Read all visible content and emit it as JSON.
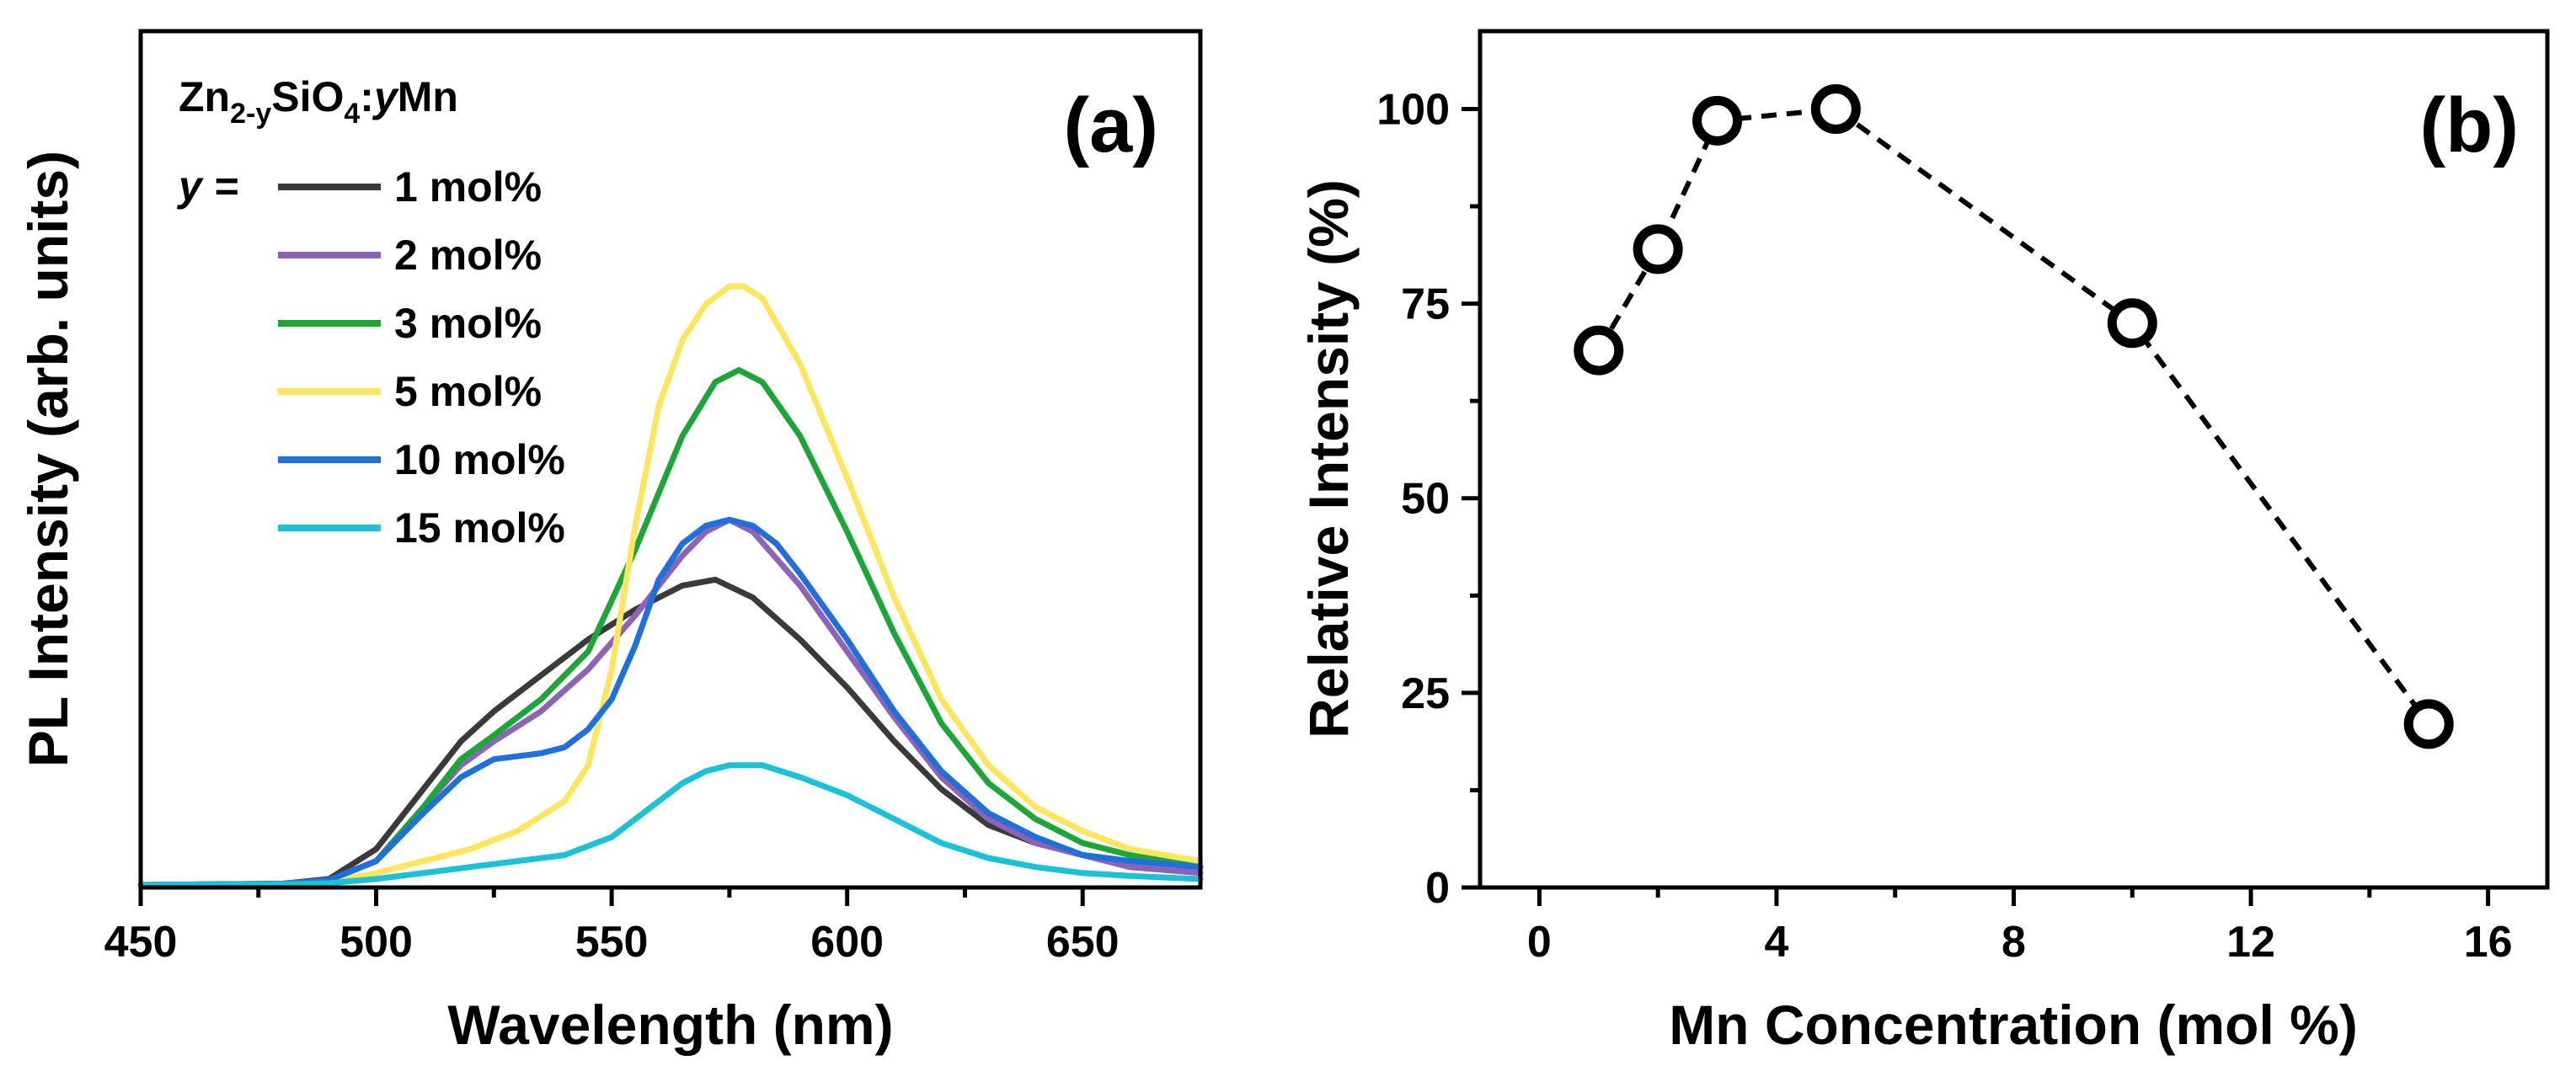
{
  "chart_data": [
    {
      "panel": "(a)",
      "type": "line",
      "title": "",
      "xlabel": "Wavelength (nm)",
      "ylabel": "PL Intensity (arb. units)",
      "xlim": [
        450,
        675
      ],
      "ylim": [
        0,
        100
      ],
      "xticks": [
        450,
        500,
        550,
        600,
        650
      ],
      "xtick_labels": [
        "450",
        "500",
        "550",
        "600",
        "650"
      ],
      "y_tick_labels_shown": false,
      "legend": {
        "placement": "top-left",
        "formula": {
          "base": "Zn",
          "subscript": "2-y",
          "rest": "SiO",
          "subscript2": "4",
          "sep": ":",
          "var": "y",
          "tail": "Mn"
        },
        "prefix": "y =",
        "entries": [
          "1 mol%",
          "2 mol%",
          "3 mol%",
          "5 mol%",
          "10 mol%",
          "15 mol%"
        ]
      },
      "series": [
        {
          "name": "1 mol%",
          "color": "#3a3a3a",
          "x": [
            450,
            480,
            490,
            500,
            510,
            518,
            525,
            535,
            545,
            555,
            565,
            572,
            580,
            590,
            600,
            610,
            620,
            630,
            640,
            650,
            660,
            675
          ],
          "y": [
            0,
            0.2,
            1,
            6,
            16,
            24,
            29,
            35,
            41,
            46,
            50,
            51,
            48,
            41,
            33,
            24,
            16,
            10,
            7,
            5,
            4,
            3
          ]
        },
        {
          "name": "2 mol%",
          "color": "#8e63b5",
          "x": [
            450,
            480,
            490,
            500,
            510,
            518,
            525,
            535,
            545,
            555,
            565,
            570,
            575,
            580,
            590,
            600,
            610,
            620,
            630,
            640,
            650,
            660,
            675
          ],
          "y": [
            0,
            0.2,
            0.8,
            4,
            13,
            20,
            24,
            29,
            36,
            45,
            55,
            59,
            61,
            59,
            50,
            39,
            28,
            18,
            11,
            7,
            5,
            3,
            2
          ]
        },
        {
          "name": "3 mol%",
          "color": "#1ca637",
          "x": [
            450,
            480,
            490,
            500,
            510,
            518,
            525,
            535,
            545,
            555,
            565,
            572,
            577,
            582,
            590,
            600,
            610,
            620,
            630,
            640,
            650,
            660,
            675
          ],
          "y": [
            0,
            0.2,
            0.8,
            4,
            13,
            21,
            25,
            31,
            39,
            56,
            75,
            84,
            86,
            84,
            75,
            59,
            42,
            27,
            17,
            11,
            7,
            5,
            3
          ]
        },
        {
          "name": "5 mol%",
          "color": "#fde65e",
          "x": [
            450,
            480,
            490,
            500,
            510,
            520,
            530,
            540,
            545,
            550,
            555,
            560,
            565,
            570,
            575,
            578,
            582,
            590,
            600,
            610,
            620,
            630,
            640,
            650,
            660,
            675
          ],
          "y": [
            0,
            0.1,
            0.5,
            2,
            4,
            6,
            9,
            14,
            20,
            36,
            60,
            80,
            91,
            97,
            100,
            100,
            98,
            87,
            68,
            48,
            31,
            20,
            13,
            9,
            6,
            4
          ]
        },
        {
          "name": "10 mol%",
          "color": "#1f6fdc",
          "x": [
            450,
            480,
            490,
            500,
            510,
            518,
            525,
            535,
            540,
            545,
            550,
            555,
            560,
            565,
            570,
            575,
            580,
            585,
            590,
            600,
            610,
            620,
            630,
            640,
            650,
            660,
            675
          ],
          "y": [
            0,
            0.2,
            0.8,
            4,
            12,
            18,
            21,
            22,
            23,
            26,
            31,
            40,
            51,
            57,
            60,
            61,
            60,
            57,
            52,
            41,
            29,
            19,
            12,
            8,
            5,
            4,
            3
          ]
        },
        {
          "name": "15 mol%",
          "color": "#1bc2d6",
          "x": [
            450,
            480,
            490,
            500,
            510,
            520,
            530,
            540,
            550,
            555,
            560,
            565,
            570,
            575,
            578,
            582,
            590,
            600,
            610,
            620,
            630,
            640,
            650,
            660,
            675
          ],
          "y": [
            0,
            0.1,
            0.3,
            1,
            2,
            3,
            4,
            5,
            8,
            11,
            14,
            17,
            19,
            20,
            20,
            20,
            18,
            15,
            11,
            7,
            4.5,
            3,
            2,
            1.5,
            1
          ]
        }
      ]
    },
    {
      "panel": "(b)",
      "type": "scatter",
      "title": "",
      "xlabel": "Mn Concentration (mol %)",
      "ylabel": "Relative Intensity (%)",
      "xlim": [
        -1,
        17
      ],
      "ylim": [
        0,
        110
      ],
      "xticks": [
        0,
        4,
        8,
        12,
        16
      ],
      "xtick_labels": [
        "0",
        "4",
        "8",
        "12",
        "16"
      ],
      "yticks": [
        0,
        25,
        50,
        75,
        100
      ],
      "ytick_labels": [
        "0",
        "25",
        "50",
        "75",
        "100"
      ],
      "line_style": "dashed",
      "marker": "open-circle",
      "x": [
        1,
        2,
        3,
        5,
        10,
        15
      ],
      "y": [
        69,
        82,
        98.5,
        100,
        72.5,
        21
      ]
    }
  ]
}
